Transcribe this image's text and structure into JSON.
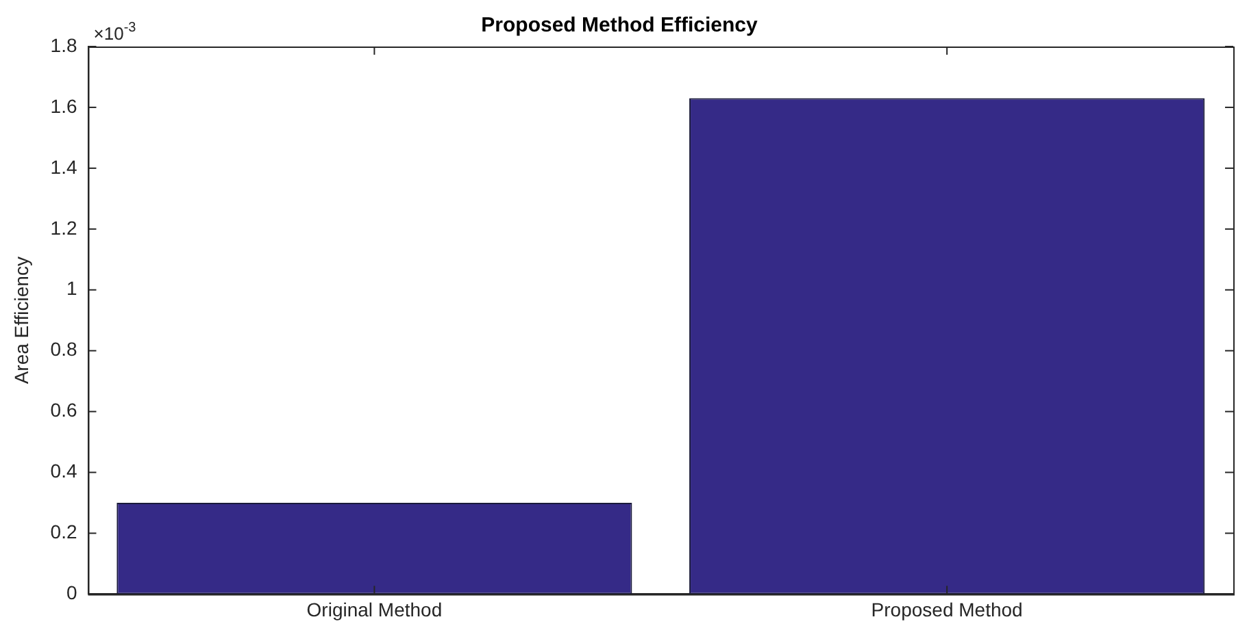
{
  "chart_data": {
    "type": "bar",
    "title": "Proposed Method Efficiency",
    "ylabel": "Area Efficiency",
    "categories": [
      "Original Method",
      "Proposed Method"
    ],
    "values": [
      0.3,
      1.63
    ],
    "color": "#352a87",
    "ylim": [
      0,
      1.8
    ],
    "yticks": [
      0,
      0.2,
      0.4,
      0.6,
      0.8,
      1,
      1.2,
      1.4,
      1.6,
      1.8
    ],
    "annotations": [
      "×10$^{-3}$"
    ],
    "grid": false,
    "legend": false
  }
}
